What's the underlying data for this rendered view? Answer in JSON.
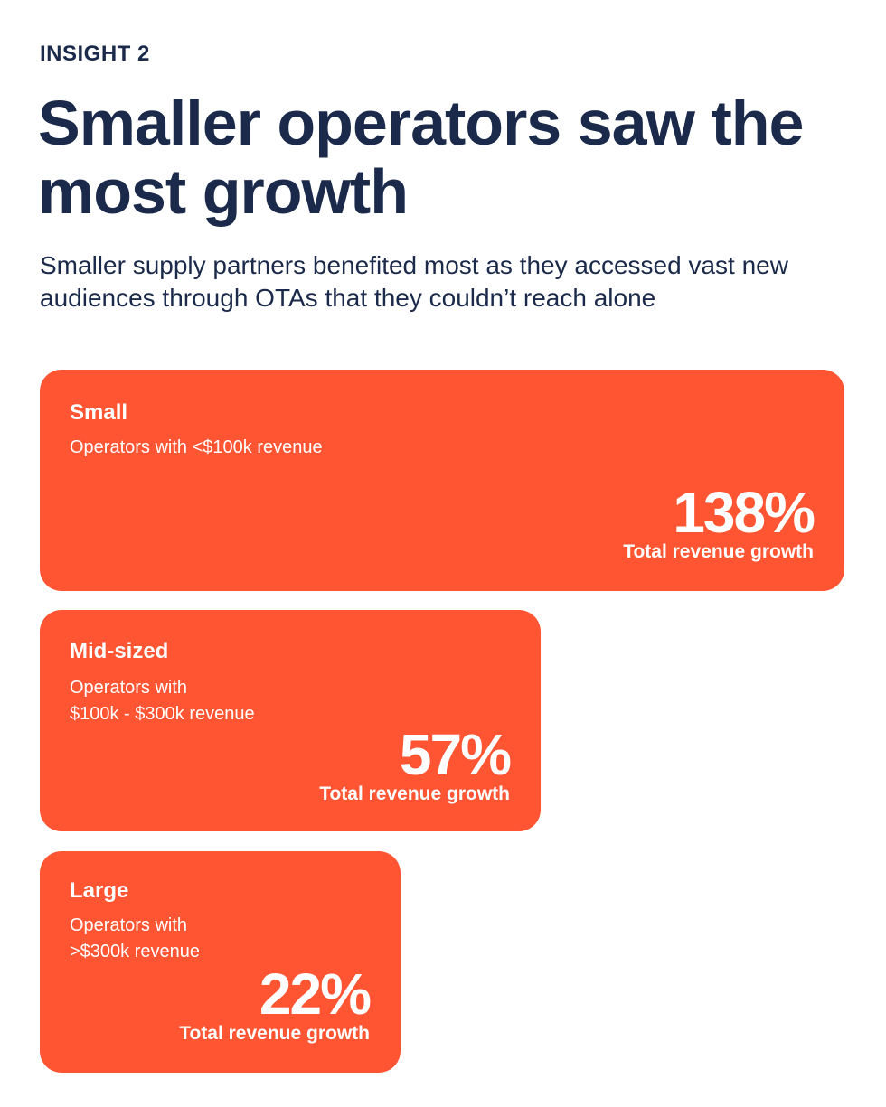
{
  "eyebrow": "INSIGHT 2",
  "title": "Smaller operators saw the most growth",
  "subtitle": "Smaller supply partners benefited most as they accessed vast new audiences through OTAs that they couldn’t reach alone",
  "accent_color": "#ff5533",
  "cards": [
    {
      "name": "Small",
      "description": "Operators with <$100k revenue",
      "value": "138%",
      "label": "Total revenue growth"
    },
    {
      "name": "Mid-sized",
      "description_lines": [
        "Operators with",
        "$100k - $300k revenue"
      ],
      "value": "57%",
      "label": "Total revenue growth"
    },
    {
      "name": "Large",
      "description_lines": [
        "Operators with",
        ">$300k revenue"
      ],
      "value": "22%",
      "label": "Total revenue growth"
    }
  ]
}
